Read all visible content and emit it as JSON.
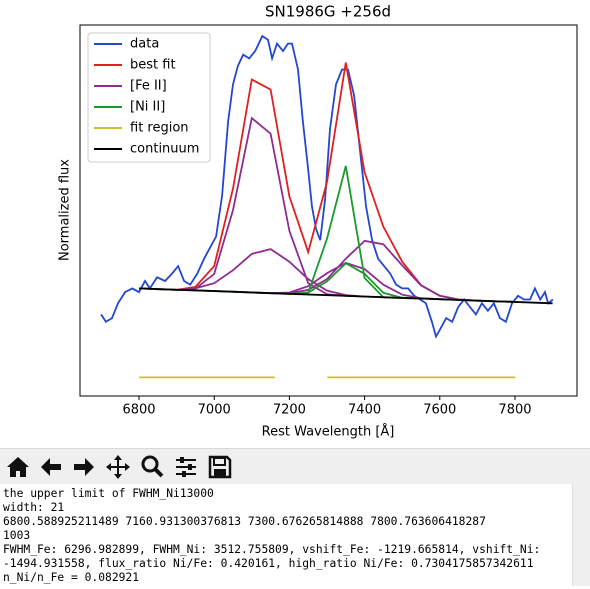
{
  "chart_data": {
    "type": "line",
    "title": "SN1986G  +256d",
    "x_label": "Rest Wavelength [Å]",
    "y_label": "Normalized flux",
    "xlim": [
      6643,
      7965
    ],
    "ylim": [
      0,
      1
    ],
    "xticks": [
      6800,
      7000,
      7200,
      7400,
      7600,
      7800
    ],
    "legend": "upper left",
    "series": [
      {
        "name": "data",
        "color": "#2347d0",
        "x": [
          6699,
          6712,
          6728,
          6744,
          6763,
          6782,
          6800,
          6816,
          6829,
          6848,
          6869,
          6888,
          6904,
          6920,
          6936,
          6955,
          6973,
          6989,
          7005,
          7021,
          7037,
          7050,
          7063,
          7077,
          7093,
          7109,
          7128,
          7143,
          7154,
          7167,
          7183,
          7196,
          7207,
          7223,
          7236,
          7250,
          7260,
          7271,
          7282,
          7295,
          7308,
          7324,
          7340,
          7356,
          7372,
          7388,
          7404,
          7420,
          7436,
          7452,
          7468,
          7484,
          7500,
          7516,
          7532,
          7548,
          7563,
          7579,
          7590,
          7601,
          7617,
          7633,
          7649,
          7665,
          7680,
          7696,
          7712,
          7728,
          7744,
          7760,
          7776,
          7792,
          7808,
          7824,
          7840,
          7853,
          7867,
          7880,
          7888,
          7901
        ],
        "values": [
          0.22,
          0.2,
          0.21,
          0.25,
          0.28,
          0.29,
          0.28,
          0.31,
          0.29,
          0.32,
          0.31,
          0.33,
          0.35,
          0.31,
          0.3,
          0.33,
          0.37,
          0.4,
          0.43,
          0.54,
          0.74,
          0.84,
          0.89,
          0.92,
          0.91,
          0.93,
          0.97,
          0.96,
          0.91,
          0.95,
          0.93,
          0.95,
          0.95,
          0.88,
          0.74,
          0.61,
          0.51,
          0.45,
          0.42,
          0.53,
          0.72,
          0.84,
          0.88,
          0.88,
          0.81,
          0.66,
          0.51,
          0.42,
          0.37,
          0.35,
          0.33,
          0.3,
          0.29,
          0.29,
          0.27,
          0.26,
          0.25,
          0.2,
          0.16,
          0.18,
          0.21,
          0.2,
          0.24,
          0.26,
          0.24,
          0.22,
          0.25,
          0.23,
          0.25,
          0.21,
          0.2,
          0.25,
          0.27,
          0.26,
          0.26,
          0.29,
          0.26,
          0.28,
          0.25,
          0.26
        ]
      },
      {
        "name": "best fit",
        "color": "#e02020",
        "x": [
          6800,
          6850,
          6900,
          6950,
          7000,
          7050,
          7100,
          7150,
          7200,
          7250,
          7300,
          7350,
          7400,
          7450,
          7500,
          7550,
          7600,
          7650,
          7700,
          7750,
          7800
        ],
        "values": [
          0.29,
          0.288,
          0.286,
          0.294,
          0.35,
          0.559,
          0.853,
          0.826,
          0.538,
          0.388,
          0.577,
          0.899,
          0.603,
          0.456,
          0.362,
          0.299,
          0.27,
          0.26,
          0.257,
          0.255,
          0.254
        ]
      },
      {
        "name": "[Fe II]",
        "color": "#8e2c91",
        "x": [
          6800,
          6850,
          6900,
          6950,
          7000,
          7050,
          7100,
          7150,
          7200,
          7250,
          7300,
          7350,
          7400,
          7450,
          7500,
          7550,
          7600,
          7650,
          7700,
          7750,
          7800,
          null,
          6800,
          6850,
          6900,
          6950,
          7000,
          7050,
          7100,
          7150,
          7200,
          7250,
          7300,
          7350,
          7400,
          7450,
          7500,
          7550,
          7600,
          7650,
          7700,
          7750,
          7800,
          null,
          6800,
          6850,
          6900,
          6950,
          7000,
          7050,
          7100,
          7150,
          7200,
          7250,
          7300,
          7350,
          7400,
          7450,
          7500,
          7550,
          7600,
          7650,
          7700,
          7750,
          7800,
          null,
          6800,
          6850,
          6900,
          6950,
          7000,
          7050,
          7100,
          7150,
          7200,
          7250,
          7300,
          7350,
          7400,
          7450,
          7500,
          7550,
          7600,
          7650,
          7700,
          7750,
          7800
        ],
        "values": [
          0.29,
          0.288,
          0.286,
          0.289,
          0.329,
          0.501,
          0.749,
          0.707,
          0.445,
          0.304,
          0.274,
          0.27,
          0.268,
          0.266,
          0.264,
          0.263,
          0.261,
          0.259,
          0.257,
          0.255,
          0.254,
          null,
          0.29,
          0.288,
          0.286,
          0.29,
          0.304,
          0.339,
          0.383,
          0.396,
          0.362,
          0.315,
          0.284,
          0.272,
          0.268,
          0.266,
          0.264,
          0.263,
          0.261,
          0.259,
          0.257,
          0.255,
          0.254,
          null,
          0.29,
          0.288,
          0.286,
          0.285,
          0.283,
          0.281,
          0.279,
          0.277,
          0.277,
          0.286,
          0.315,
          0.37,
          0.418,
          0.409,
          0.352,
          0.298,
          0.27,
          0.26,
          0.257,
          0.255,
          0.254,
          null,
          0.29,
          0.288,
          0.286,
          0.285,
          0.283,
          0.281,
          0.279,
          0.277,
          0.279,
          0.296,
          0.331,
          0.359,
          0.342,
          0.3,
          0.273,
          0.264,
          0.261,
          0.259,
          0.257,
          0.255,
          0.254
        ]
      },
      {
        "name": "[Ni II]",
        "color": "#1a9a2a",
        "x": [
          6800,
          6850,
          6900,
          6950,
          7000,
          7050,
          7100,
          7150,
          7200,
          7250,
          7300,
          7350,
          7400,
          7450,
          7500,
          7550,
          7600,
          7650,
          7700,
          7750,
          7800,
          null,
          6800,
          6850,
          6900,
          6950,
          7000,
          7050,
          7100,
          7150,
          7200,
          7250,
          7300,
          7350,
          7400,
          7450,
          7500,
          7550,
          7600,
          7650,
          7700,
          7750,
          7800
        ],
        "values": [
          0.29,
          0.288,
          0.286,
          0.285,
          0.283,
          0.281,
          0.279,
          0.277,
          0.275,
          0.278,
          0.424,
          0.62,
          0.318,
          0.266,
          0.264,
          0.263,
          0.261,
          0.259,
          0.257,
          0.255,
          0.254,
          null,
          0.29,
          0.288,
          0.286,
          0.285,
          0.283,
          0.281,
          0.279,
          0.277,
          0.275,
          0.279,
          0.309,
          0.358,
          0.329,
          0.278,
          0.265,
          0.263,
          0.261,
          0.259,
          0.257,
          0.255,
          0.254
        ]
      },
      {
        "name": "fit region",
        "color": "#c8c032",
        "x": [
          6800.589,
          7160.931,
          null,
          7300.676,
          7800.764
        ],
        "values": [
          0.05,
          0.05,
          null,
          0.05,
          0.05
        ]
      },
      {
        "name": "continuum",
        "color": "#000000",
        "x": [
          6800,
          7900
        ],
        "values": [
          0.29,
          0.25
        ]
      }
    ]
  },
  "console": {
    "lines": [
      "the upper limit of FWHM_Ni13000",
      "width: 21",
      "6800.588925211489 7160.931300376813 7300.676265814888 7800.763606418287",
      "1003",
      "FWHM_Fe: 6296.982899, FWHM_Ni: 3512.755809, vshift_Fe: -1219.665814, vshift_Ni:",
      "-1494.931558, flux_ratio Ni/Fe: 0.420161, high_ratio Ni/Fe: 0.7304175857342611",
      "n_Ni/n_Fe = 0.082921"
    ]
  }
}
